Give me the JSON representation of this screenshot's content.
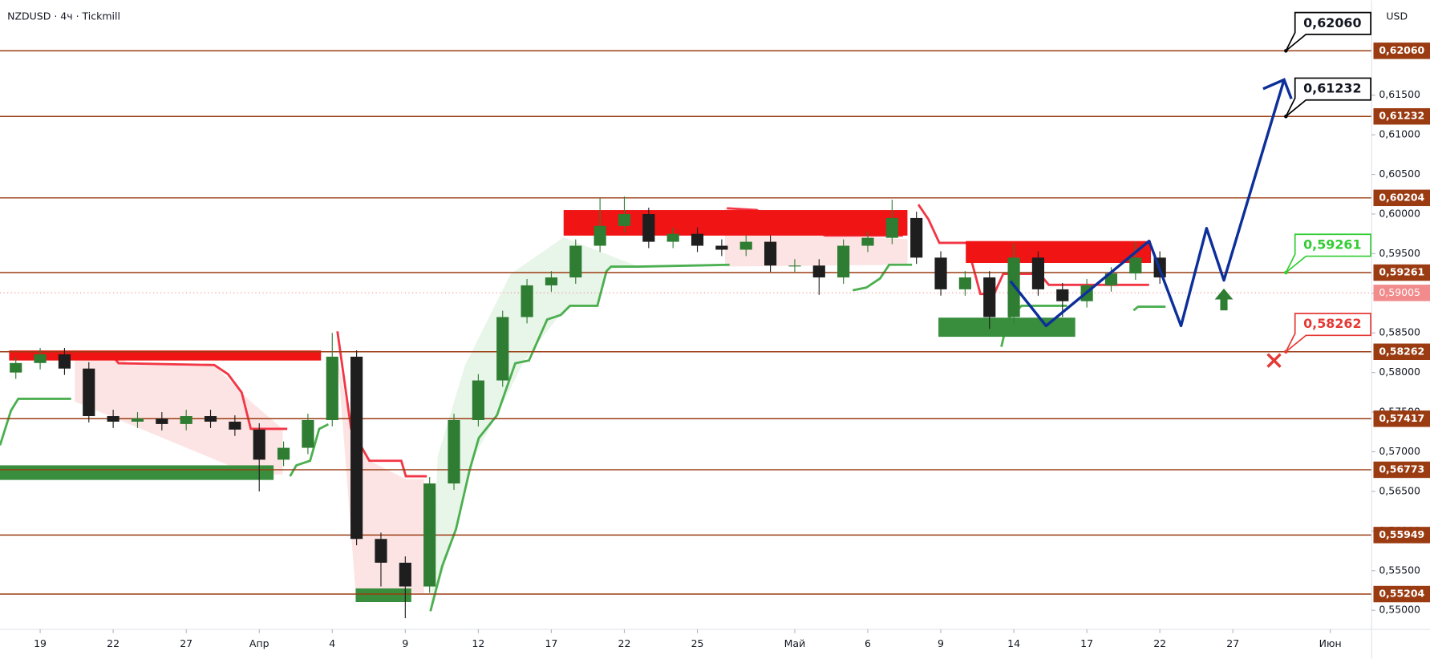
{
  "chart_data": {
    "type": "candlestick",
    "title": "NZDUSD · 4ч · Tickmill",
    "currency": "USD",
    "up_color": "#2e7d32",
    "down_color": "#1e1e1e",
    "level_color": "#9a3b12",
    "x": [
      -1,
      0,
      1,
      2,
      3,
      4,
      5,
      6,
      7,
      8,
      9,
      10,
      11,
      12,
      13,
      14,
      15,
      16,
      17,
      18,
      19,
      20,
      21,
      22,
      23,
      24,
      25,
      26,
      27,
      28,
      29,
      30,
      31,
      32,
      33,
      34,
      35,
      36,
      37,
      38,
      39,
      40,
      41,
      42,
      43,
      44,
      45,
      46
    ],
    "open": [
      0.58,
      0.5812,
      0.5823,
      0.5805,
      0.5745,
      0.5738,
      0.5742,
      0.5735,
      0.5745,
      0.5738,
      0.5728,
      0.569,
      0.5705,
      0.574,
      0.582,
      0.559,
      0.556,
      0.553,
      0.566,
      0.574,
      0.579,
      0.587,
      0.591,
      0.592,
      0.596,
      0.5985,
      0.6,
      0.5965,
      0.5975,
      0.596,
      0.5955,
      0.5965,
      0.5935,
      0.5935,
      0.592,
      0.596,
      0.597,
      0.5995,
      0.5945,
      0.5905,
      0.592,
      0.587,
      0.5945,
      0.5905,
      0.589,
      0.591,
      0.5925,
      0.5945
    ],
    "high": [
      0.582,
      0.5831,
      0.5831,
      0.5813,
      0.5753,
      0.575,
      0.575,
      0.5753,
      0.5753,
      0.5746,
      0.5736,
      0.5713,
      0.5748,
      0.585,
      0.5828,
      0.5598,
      0.5568,
      0.5668,
      0.5748,
      0.5798,
      0.5878,
      0.5918,
      0.5928,
      0.5968,
      0.602,
      0.6022,
      0.6008,
      0.5983,
      0.5983,
      0.5968,
      0.5973,
      0.5973,
      0.5943,
      0.5943,
      0.5968,
      0.5978,
      0.6018,
      0.6003,
      0.5953,
      0.5928,
      0.5928,
      0.5963,
      0.5953,
      0.5913,
      0.5918,
      0.5933,
      0.5965,
      0.5953
    ],
    "low": [
      0.5792,
      0.5804,
      0.5797,
      0.5737,
      0.573,
      0.573,
      0.5727,
      0.5727,
      0.573,
      0.572,
      0.565,
      0.5682,
      0.5697,
      0.5732,
      0.5582,
      0.553,
      0.549,
      0.5522,
      0.5652,
      0.5732,
      0.5782,
      0.5862,
      0.5902,
      0.5912,
      0.5952,
      0.5977,
      0.5957,
      0.5957,
      0.5952,
      0.5947,
      0.5947,
      0.5927,
      0.5927,
      0.5898,
      0.5912,
      0.5952,
      0.5962,
      0.5937,
      0.5897,
      0.5897,
      0.5855,
      0.5862,
      0.5897,
      0.587,
      0.5882,
      0.5902,
      0.5917,
      0.5912
    ],
    "close": [
      0.5812,
      0.5823,
      0.5805,
      0.5745,
      0.5738,
      0.5742,
      0.5735,
      0.5745,
      0.5738,
      0.5728,
      0.569,
      0.5705,
      0.574,
      0.582,
      0.559,
      0.556,
      0.553,
      0.566,
      0.574,
      0.579,
      0.587,
      0.591,
      0.592,
      0.596,
      0.5985,
      0.6,
      0.5965,
      0.5975,
      0.596,
      0.5955,
      0.5965,
      0.5935,
      0.5935,
      0.592,
      0.596,
      0.597,
      0.5995,
      0.5945,
      0.5905,
      0.592,
      0.587,
      0.5945,
      0.5905,
      0.589,
      0.591,
      0.5925,
      0.5945,
      0.592
    ],
    "xlim": [
      -1.65,
      54.7
    ],
    "ylim": [
      0.54758,
      0.62696
    ],
    "xticks": [
      {
        "value": 0,
        "label": "19"
      },
      {
        "value": 3,
        "label": "22"
      },
      {
        "value": 6,
        "label": "27"
      },
      {
        "value": 9,
        "label": "Апр"
      },
      {
        "value": 12,
        "label": "4"
      },
      {
        "value": 15,
        "label": "9"
      },
      {
        "value": 18,
        "label": "12"
      },
      {
        "value": 21,
        "label": "17"
      },
      {
        "value": 24,
        "label": "22"
      },
      {
        "value": 27,
        "label": "25"
      },
      {
        "value": 31,
        "label": "Май"
      },
      {
        "value": 34,
        "label": "6"
      },
      {
        "value": 37,
        "label": "9"
      },
      {
        "value": 40,
        "label": "14"
      },
      {
        "value": 43,
        "label": "17"
      },
      {
        "value": 46,
        "label": "22"
      },
      {
        "value": 49,
        "label": "27"
      },
      {
        "value": 53,
        "label": "Июн"
      }
    ],
    "yticks": [
      {
        "value": 0.55,
        "label": "0,55000"
      },
      {
        "value": 0.555,
        "label": "0,55500"
      },
      {
        "value": 0.56,
        "label": "0,56000"
      },
      {
        "value": 0.565,
        "label": "0,56500"
      },
      {
        "value": 0.57,
        "label": "0,57000"
      },
      {
        "value": 0.575,
        "label": "0,57500"
      },
      {
        "value": 0.58,
        "label": "0,58000"
      },
      {
        "value": 0.585,
        "label": "0,58500"
      },
      {
        "value": 0.59,
        "label": "0,59000"
      },
      {
        "value": 0.595,
        "label": "0,59500"
      },
      {
        "value": 0.6,
        "label": "0,60000"
      },
      {
        "value": 0.605,
        "label": "0,60500"
      },
      {
        "value": 0.61,
        "label": "0,61000"
      },
      {
        "value": 0.615,
        "label": "0,61500"
      }
    ],
    "levels": [
      {
        "value": 0.6206,
        "label": "0,62060"
      },
      {
        "value": 0.61232,
        "label": "0,61232"
      },
      {
        "value": 0.60204,
        "label": "0,60204"
      },
      {
        "value": 0.59261,
        "label": "0,59261"
      },
      {
        "value": 0.58262,
        "label": "0,58262"
      },
      {
        "value": 0.57417,
        "label": "0,57417"
      },
      {
        "value": 0.56773,
        "label": "0,56773"
      },
      {
        "value": 0.55949,
        "label": "0,55949"
      },
      {
        "value": 0.55204,
        "label": "0,55204"
      }
    ],
    "current_price": {
      "value": 0.59005,
      "label": "0,59005",
      "color": "#f28b8b"
    },
    "callouts": [
      {
        "value": 0.6206,
        "label": "0,62060",
        "color": "#000000"
      },
      {
        "value": 0.61232,
        "label": "0,61232",
        "color": "#000000"
      },
      {
        "value": 0.59261,
        "label": "0,59261",
        "color": "#33cc33"
      },
      {
        "value": 0.58262,
        "label": "0,58262",
        "color": "#e53935"
      }
    ]
  }
}
